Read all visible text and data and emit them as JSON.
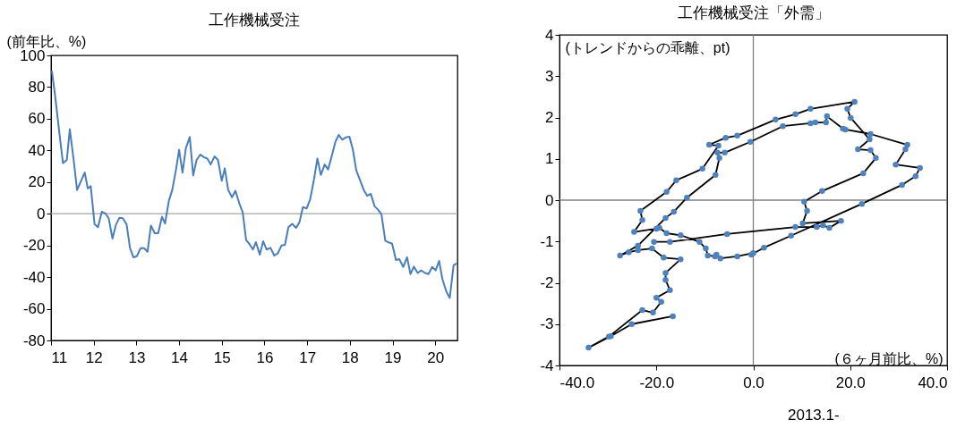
{
  "chart_data": [
    {
      "type": "line",
      "title": "工作機械受注",
      "ylabel": "(前年比、%)",
      "x": [
        2011.02,
        2011.1,
        2011.2,
        2011.28,
        2011.37,
        2011.44,
        2011.53,
        2011.61,
        2011.79,
        2011.86,
        2011.93,
        2012.02,
        2012.1,
        2012.19,
        2012.28,
        2012.35,
        2012.44,
        2012.52,
        2012.6,
        2012.68,
        2012.77,
        2012.85,
        2012.93,
        2013.01,
        2013.1,
        2013.18,
        2013.26,
        2013.34,
        2013.43,
        2013.51,
        2013.6,
        2013.67,
        2013.76,
        2013.84,
        2013.93,
        2014.0,
        2014.08,
        2014.16,
        2014.25,
        2014.33,
        2014.41,
        2014.5,
        2014.58,
        2014.66,
        2014.74,
        2014.83,
        2014.91,
        2015.0,
        2015.07,
        2015.15,
        2015.24,
        2015.32,
        2015.41,
        2015.49,
        2015.57,
        2015.65,
        2015.73,
        2015.8,
        2015.89,
        2015.97,
        2016.05,
        2016.14,
        2016.23,
        2016.31,
        2016.4,
        2016.48,
        2016.56,
        2016.65,
        2016.74,
        2016.82,
        2016.9,
        2016.99,
        2017.07,
        2017.16,
        2017.24,
        2017.32,
        2017.41,
        2017.49,
        2017.57,
        2017.66,
        2017.74,
        2017.82,
        2017.91,
        2017.99,
        2018.07,
        2018.15,
        2018.24,
        2018.33,
        2018.41,
        2018.49,
        2018.58,
        2018.66,
        2018.74,
        2018.83,
        2018.91,
        2018.99,
        2019.08,
        2019.16,
        2019.25,
        2019.34,
        2019.42,
        2019.5,
        2019.59,
        2019.67,
        2019.76,
        2019.84,
        2019.93,
        2020.01,
        2020.09,
        2020.17,
        2020.26,
        2020.34,
        2020.43,
        2020.51
      ],
      "series": [
        {
          "color": "#4a7ebb",
          "values": [
            90.2,
            73.6,
            50,
            32,
            34,
            53.4,
            34,
            15,
            26,
            16,
            17.4,
            -6.6,
            -8.5,
            1.3,
            0,
            -2.8,
            -15.7,
            -7,
            -2.6,
            -2.8,
            -6.6,
            -21.7,
            -27.5,
            -26.8,
            -21.7,
            -21.7,
            -24,
            -7.5,
            -12.3,
            -12.3,
            -1.9,
            -6.2,
            8.1,
            15,
            28.3,
            40.4,
            26,
            41.5,
            48.5,
            24.2,
            34,
            37.4,
            35.7,
            34.9,
            31.1,
            36.2,
            34,
            20.8,
            28.7,
            15,
            10.4,
            14.5,
            6.6,
            0.9,
            -16.6,
            -19.2,
            -22.6,
            -17.9,
            -25.8,
            -17.4,
            -22.6,
            -21.5,
            -26.4,
            -25.1,
            -20,
            -19.6,
            -8.5,
            -6.4,
            -8.9,
            -5.3,
            4.2,
            3.4,
            9.1,
            21.7,
            34.9,
            24.5,
            31.1,
            27.9,
            35.8,
            45.3,
            49.8,
            46.8,
            48.3,
            48.7,
            40.6,
            27.4,
            21.1,
            14.7,
            11.3,
            12.6,
            4.7,
            2.6,
            -0.4,
            -17,
            -18.1,
            -18.9,
            -29.2,
            -28.7,
            -33.6,
            -27.5,
            -38.1,
            -33.4,
            -37.4,
            -35.8,
            -37.4,
            -38.1,
            -33.6,
            -35.8,
            -29.8,
            -41.5,
            -49.1,
            -53.2,
            -32.5,
            -31.3
          ]
        }
      ],
      "xlim": [
        2011,
        2020.52
      ],
      "xticks": [
        {
          "value": 2011,
          "label": "11"
        },
        {
          "value": 2012,
          "label": "12"
        },
        {
          "value": 2013,
          "label": "13"
        },
        {
          "value": 2014,
          "label": "14"
        },
        {
          "value": 2015,
          "label": "15"
        },
        {
          "value": 2016,
          "label": "16"
        },
        {
          "value": 2017,
          "label": "17"
        },
        {
          "value": 2018,
          "label": "18"
        },
        {
          "value": 2019,
          "label": "19"
        },
        {
          "value": 2020,
          "label": "20"
        }
      ],
      "ylim": [
        -80,
        100
      ],
      "yticks": [
        -80,
        -60,
        -40,
        -20,
        0,
        20,
        40,
        60,
        80,
        100
      ],
      "ref_lines": [
        {
          "axis": "y",
          "value": 0,
          "color": "#a6a6a6"
        }
      ],
      "marker": "none",
      "grid": false
    },
    {
      "type": "scatter",
      "title": "工作機械受注「外需」",
      "xlabel": "(６ヶ月前比、%)",
      "ylabel": "(トレンドからの乖離、pt)",
      "annotations": [
        "2013.1-"
      ],
      "series": [
        {
          "type": "line",
          "marker": "none",
          "color": "#000000",
          "x": [
            -16.6,
            -25.1,
            -29.4,
            -34.0,
            -29.8,
            -22.9,
            -20.7,
            -19.0,
            -20.0,
            -17.2,
            -18.1,
            -18.1,
            -15.0,
            -18.5,
            -20.9,
            -23.8,
            -25.7,
            -27.5,
            -23.8,
            -18.1,
            -16.4,
            -13.7,
            -7.8,
            -7.0,
            -7.4,
            -5.9,
            -0.6,
            6.1,
            11.8,
            12.8,
            15.0,
            15.2,
            18.5,
            19.0,
            24.2,
            31.8,
            31.4,
            29.4,
            34.4,
            33.5,
            30.7,
            22.4,
            7.8,
            2.2,
            -0.4,
            0,
            -3.3,
            -6.8,
            -7.6,
            -7.9,
            -9.4,
            -9.8,
            -11.1,
            -15.0,
            -17.9,
            -19.4,
            -20.0,
            -24.6,
            -22.9,
            -23.3,
            -17.9,
            -15.9,
            -10.5,
            -7.2,
            -9.1,
            -5.7,
            -3.3,
            4.6,
            8.7,
            11.8,
            20.9,
            19.4,
            20.1,
            24.0,
            21.6,
            24.2,
            25.3,
            22.7,
            14.2,
            10.5,
            11.1,
            10.2,
            18.1,
            15.7,
            14.4,
            13.1,
            8.7,
            -5.4,
            -17.2,
            -20.5
          ],
          "values": [
            -2.81,
            -3.0,
            -3.29,
            -3.57,
            -3.3,
            -2.66,
            -2.72,
            -2.46,
            -2.36,
            -2.18,
            -1.93,
            -1.76,
            -1.43,
            -1.39,
            -1.17,
            -1.21,
            -1.26,
            -1.34,
            -1.1,
            -0.43,
            -0.28,
            0.06,
            0.61,
            1.02,
            1.15,
            1.15,
            1.41,
            1.79,
            1.86,
            1.88,
            1.88,
            2.03,
            1.73,
            1.71,
            1.6,
            1.34,
            1.23,
            0.86,
            0.78,
            0.58,
            0.37,
            -0.09,
            -0.86,
            -1.15,
            -1.32,
            -1.28,
            -1.36,
            -1.41,
            -1.32,
            -1.36,
            -1.34,
            -1.17,
            -1.01,
            -0.85,
            -0.8,
            -0.67,
            -0.69,
            -0.77,
            -0.48,
            -0.26,
            0.2,
            0.48,
            0.76,
            1.32,
            1.34,
            1.51,
            1.56,
            1.95,
            2.08,
            2.21,
            2.38,
            2.21,
            1.99,
            1.47,
            1.23,
            1.21,
            1.02,
            0.65,
            0.22,
            -0.04,
            -0.26,
            -0.56,
            -0.5,
            -0.67,
            -0.61,
            -0.65,
            -0.65,
            -0.82,
            -1.01,
            -1.01
          ]
        },
        {
          "type": "scatter",
          "marker": "circle",
          "color": "#4f81bd",
          "x": [
            -16.6,
            -25.1,
            -29.4,
            -34.0,
            -29.8,
            -22.9,
            -20.7,
            -19.0,
            -20.0,
            -17.2,
            -18.1,
            -18.1,
            -15.0,
            -18.5,
            -20.9,
            -23.8,
            -25.7,
            -27.5,
            -23.8,
            -18.1,
            -16.4,
            -13.7,
            -7.8,
            -7.0,
            -7.4,
            -5.9,
            -0.6,
            6.1,
            11.8,
            12.8,
            15.0,
            15.2,
            18.5,
            19.0,
            24.2,
            31.8,
            31.4,
            29.4,
            34.4,
            33.5,
            30.7,
            22.4,
            7.8,
            2.2,
            -0.4,
            0,
            -3.3,
            -6.8,
            -7.6,
            -7.9,
            -9.4,
            -9.8,
            -11.1,
            -15.0,
            -17.9,
            -19.4,
            -20.0,
            -24.6,
            -22.9,
            -23.3,
            -17.9,
            -15.9,
            -10.5,
            -7.2,
            -9.1,
            -5.7,
            -3.3,
            4.6,
            8.7,
            11.8,
            20.9,
            19.4,
            20.1,
            24.0,
            21.6,
            24.2,
            25.3,
            22.7,
            14.2,
            10.5,
            11.1,
            10.2,
            18.1,
            15.7,
            14.4,
            13.1,
            8.7,
            -5.4,
            -17.2,
            -20.5
          ],
          "values": [
            -2.81,
            -3.0,
            -3.29,
            -3.57,
            -3.3,
            -2.66,
            -2.72,
            -2.46,
            -2.36,
            -2.18,
            -1.93,
            -1.76,
            -1.43,
            -1.39,
            -1.17,
            -1.21,
            -1.26,
            -1.34,
            -1.1,
            -0.43,
            -0.28,
            0.06,
            0.61,
            1.02,
            1.15,
            1.15,
            1.41,
            1.79,
            1.86,
            1.88,
            1.88,
            2.03,
            1.73,
            1.71,
            1.6,
            1.34,
            1.23,
            0.86,
            0.78,
            0.58,
            0.37,
            -0.09,
            -0.86,
            -1.15,
            -1.32,
            -1.28,
            -1.36,
            -1.41,
            -1.32,
            -1.36,
            -1.34,
            -1.17,
            -1.01,
            -0.85,
            -0.8,
            -0.67,
            -0.69,
            -0.77,
            -0.48,
            -0.26,
            0.2,
            0.48,
            0.76,
            1.32,
            1.34,
            1.51,
            1.56,
            1.95,
            2.08,
            2.21,
            2.38,
            2.21,
            1.99,
            1.47,
            1.23,
            1.21,
            1.02,
            0.65,
            0.22,
            -0.04,
            -0.26,
            -0.56,
            -0.5,
            -0.67,
            -0.61,
            -0.65,
            -0.65,
            -0.82,
            -1.01,
            -1.01
          ]
        }
      ],
      "xlim": [
        -40,
        40
      ],
      "xticks": [
        {
          "value": -40,
          "label": "-40.0"
        },
        {
          "value": -20,
          "label": "-20.0"
        },
        {
          "value": 0,
          "label": "0.0"
        },
        {
          "value": 20,
          "label": "20.0"
        },
        {
          "value": 40,
          "label": "40.0"
        }
      ],
      "ylim": [
        -4,
        4
      ],
      "yticks": [
        -4,
        -3,
        -2,
        -1,
        0,
        1,
        2,
        3,
        4
      ],
      "ref_lines": [
        {
          "axis": "x",
          "value": 0,
          "color": "#808080"
        },
        {
          "axis": "y",
          "value": 0,
          "color": "#808080"
        }
      ],
      "grid": false
    }
  ]
}
